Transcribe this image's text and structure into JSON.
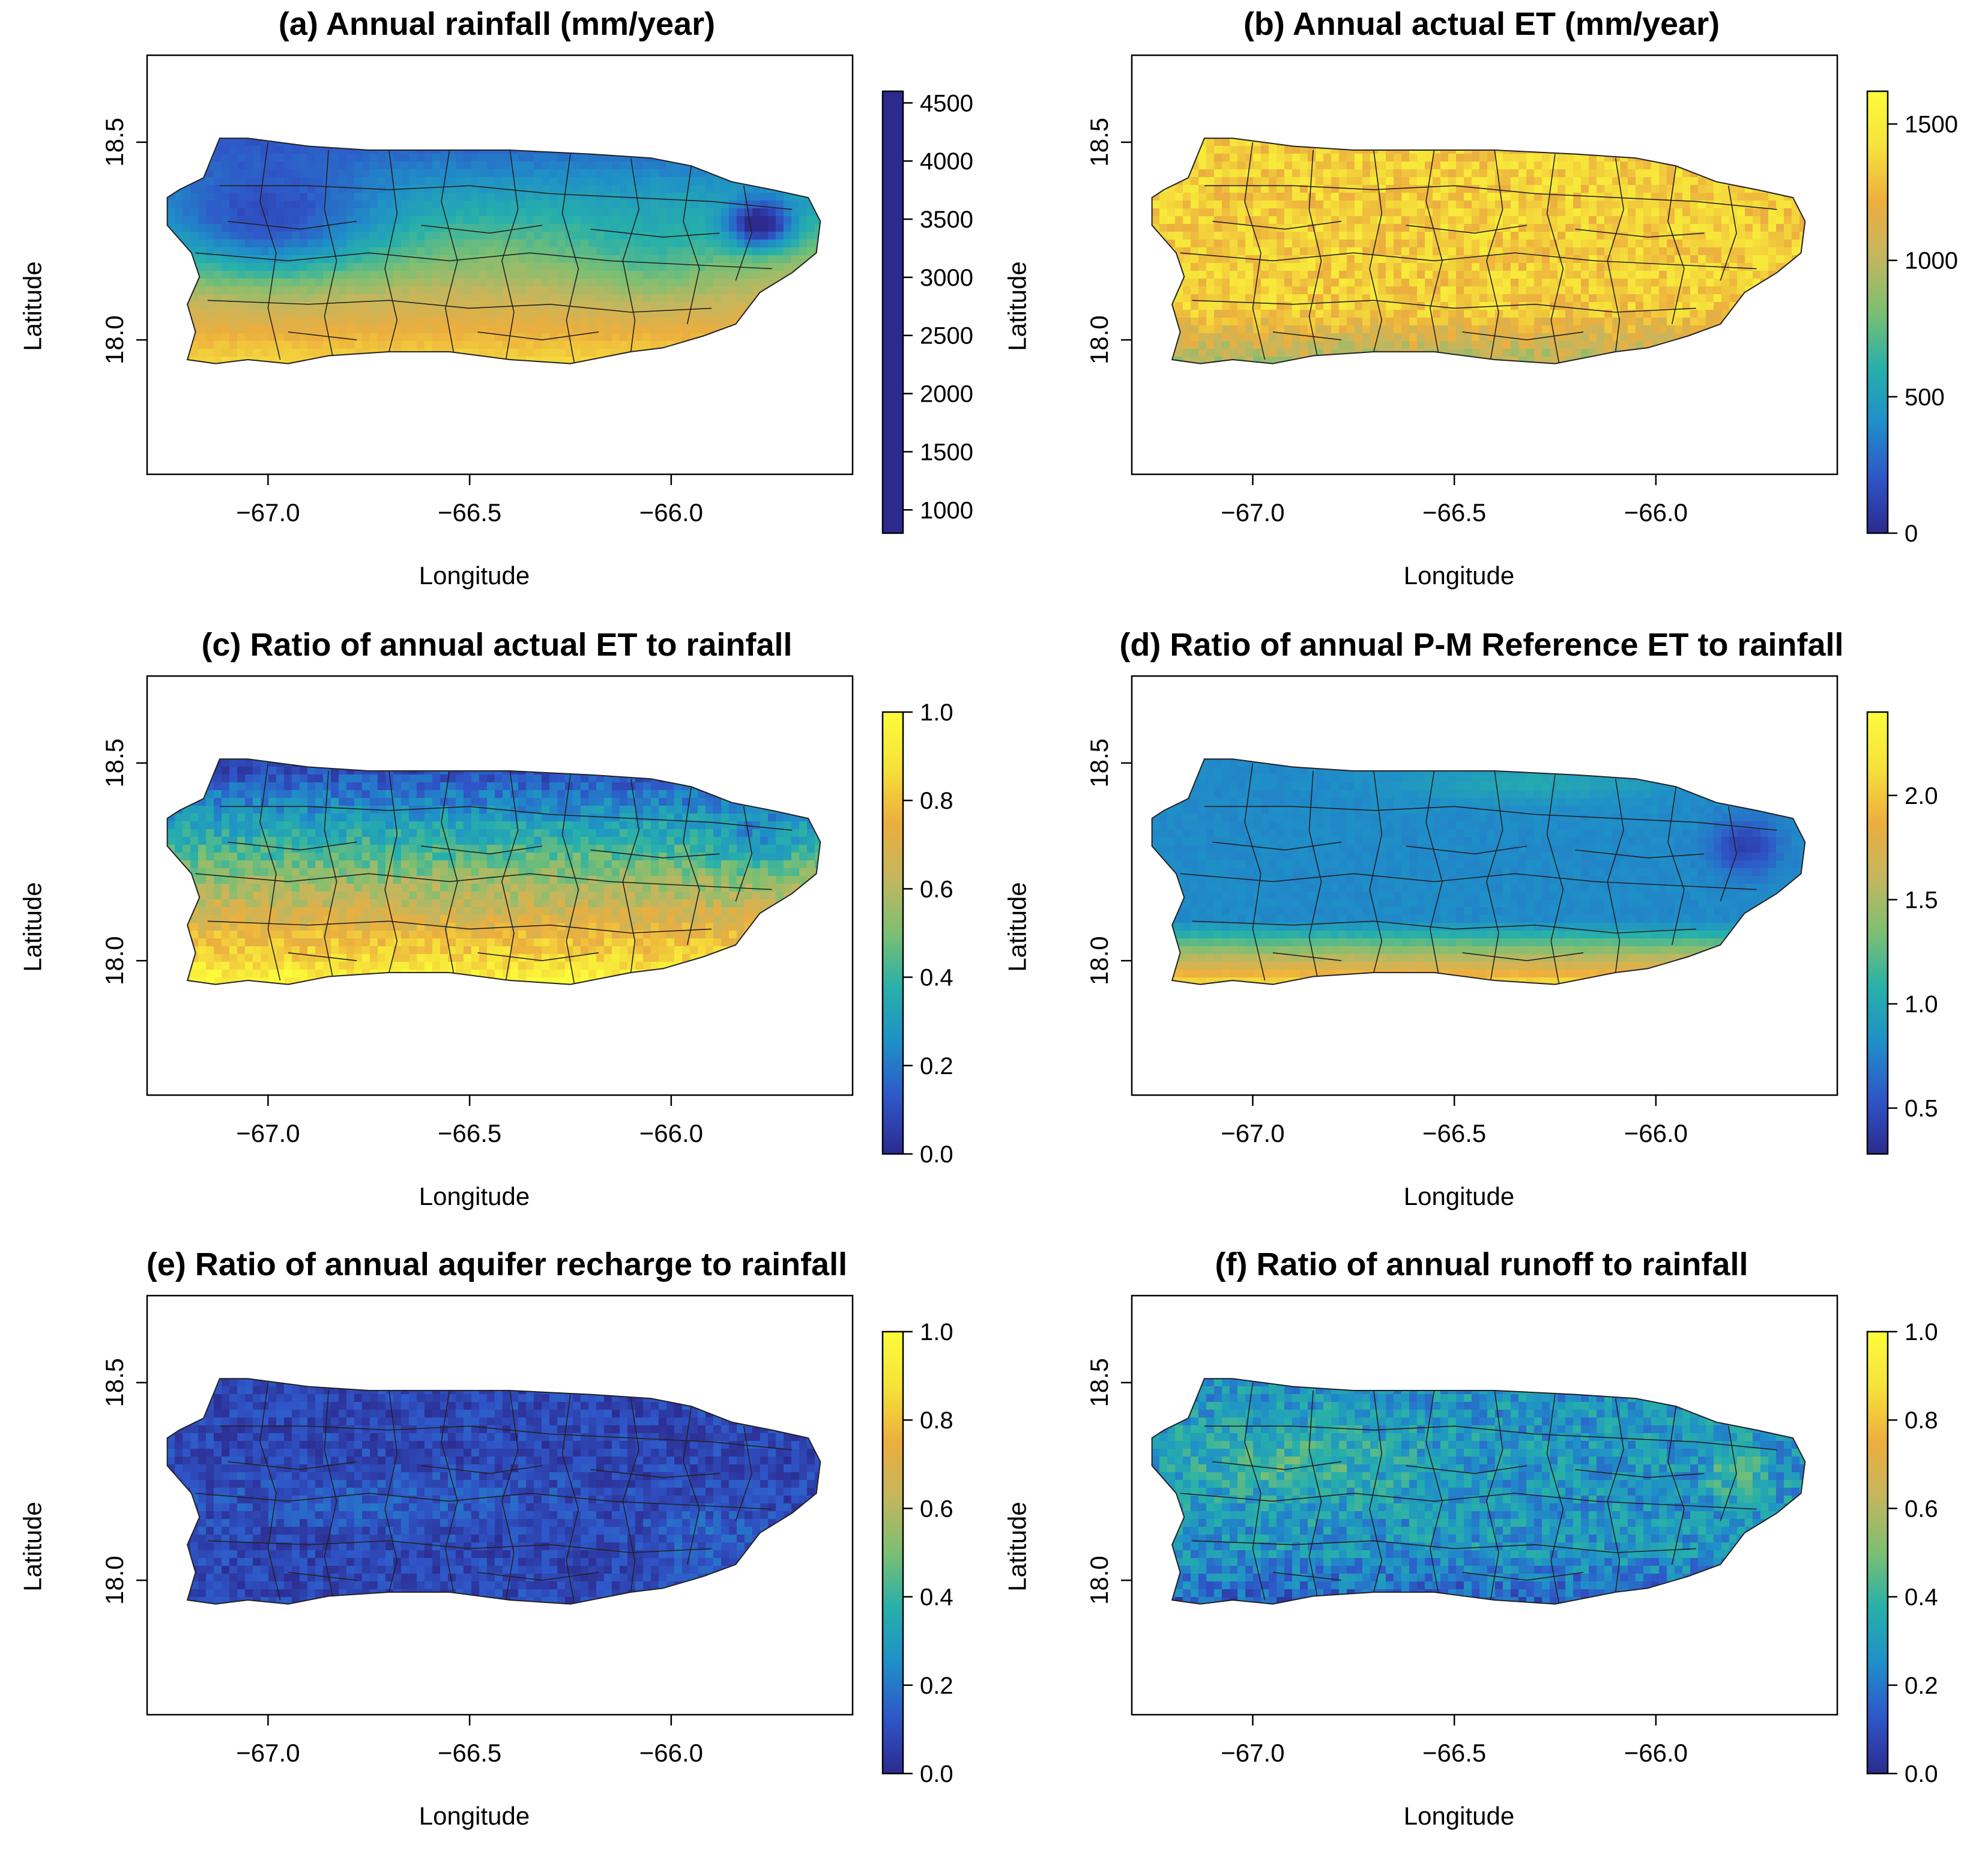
{
  "figure": {
    "colors": {
      "palette": [
        "#2c2a8e",
        "#2f56c8",
        "#1f8fc8",
        "#27b0aa",
        "#7cbf72",
        "#c4b65e",
        "#ecae3e",
        "#f6e23a",
        "#fcfc3a"
      ],
      "boundary": "#222222",
      "frame": "#000000"
    },
    "panels": [
      {
        "title": "(a) Annual rainfall (mm/year)",
        "xlabel": "Longitude",
        "ylabel": "Latitude",
        "xticks": [
          "-67.0",
          "-66.5",
          "-66.0"
        ],
        "yticks": [
          "18.0",
          "18.5"
        ],
        "colorbar": {
          "ticks": [
            "1000",
            "1500",
            "2000",
            "2500",
            "3000",
            "3500",
            "4000",
            "4500"
          ],
          "min": 800,
          "max": 4600,
          "reversed": true
        },
        "fill": "rain"
      },
      {
        "title": "(b) Annual actual ET (mm/year)",
        "xlabel": "Longitude",
        "ylabel": "Latitude",
        "xticks": [
          "-67.0",
          "-66.5",
          "-66.0"
        ],
        "yticks": [
          "18.0",
          "18.5"
        ],
        "colorbar": {
          "ticks": [
            "0",
            "500",
            "1000",
            "1500"
          ],
          "min": 0,
          "max": 1620,
          "reversed": false
        },
        "fill": "et"
      },
      {
        "title": "(c) Ratio of annual actual ET to rainfall",
        "xlabel": "Longitude",
        "ylabel": "Latitude",
        "xticks": [
          "-67.0",
          "-66.5",
          "-66.0"
        ],
        "yticks": [
          "18.0",
          "18.5"
        ],
        "colorbar": {
          "ticks": [
            "0.0",
            "0.2",
            "0.4",
            "0.6",
            "0.8",
            "1.0"
          ],
          "min": 0,
          "max": 1,
          "reversed": false
        },
        "fill": "etratio"
      },
      {
        "title": "(d) Ratio of annual P-M Reference ET to rainfall",
        "xlabel": "Longitude",
        "ylabel": "Latitude",
        "xticks": [
          "-67.0",
          "-66.5",
          "-66.0"
        ],
        "yticks": [
          "18.0",
          "18.5"
        ],
        "colorbar": {
          "ticks": [
            "0.5",
            "1.0",
            "1.5",
            "2.0"
          ],
          "min": 0.28,
          "max": 2.4,
          "reversed": false
        },
        "fill": "pm"
      },
      {
        "title": "(e) Ratio of annual aquifer recharge to rainfall",
        "xlabel": "Longitude",
        "ylabel": "Latitude",
        "xticks": [
          "-67.0",
          "-66.5",
          "-66.0"
        ],
        "yticks": [
          "18.0",
          "18.5"
        ],
        "colorbar": {
          "ticks": [
            "0.0",
            "0.2",
            "0.4",
            "0.6",
            "0.8",
            "1.0"
          ],
          "min": 0,
          "max": 1,
          "reversed": false
        },
        "fill": "recharge"
      },
      {
        "title": "(f) Ratio of annual runoff to rainfall",
        "xlabel": "Longitude",
        "ylabel": "Latitude",
        "xticks": [
          "-67.0",
          "-66.5",
          "-66.0"
        ],
        "yticks": [
          "18.0",
          "18.5"
        ],
        "colorbar": {
          "ticks": [
            "0.0",
            "0.2",
            "0.4",
            "0.6",
            "0.8",
            "1.0"
          ],
          "min": 0,
          "max": 1,
          "reversed": false
        },
        "fill": "runoff"
      }
    ]
  }
}
